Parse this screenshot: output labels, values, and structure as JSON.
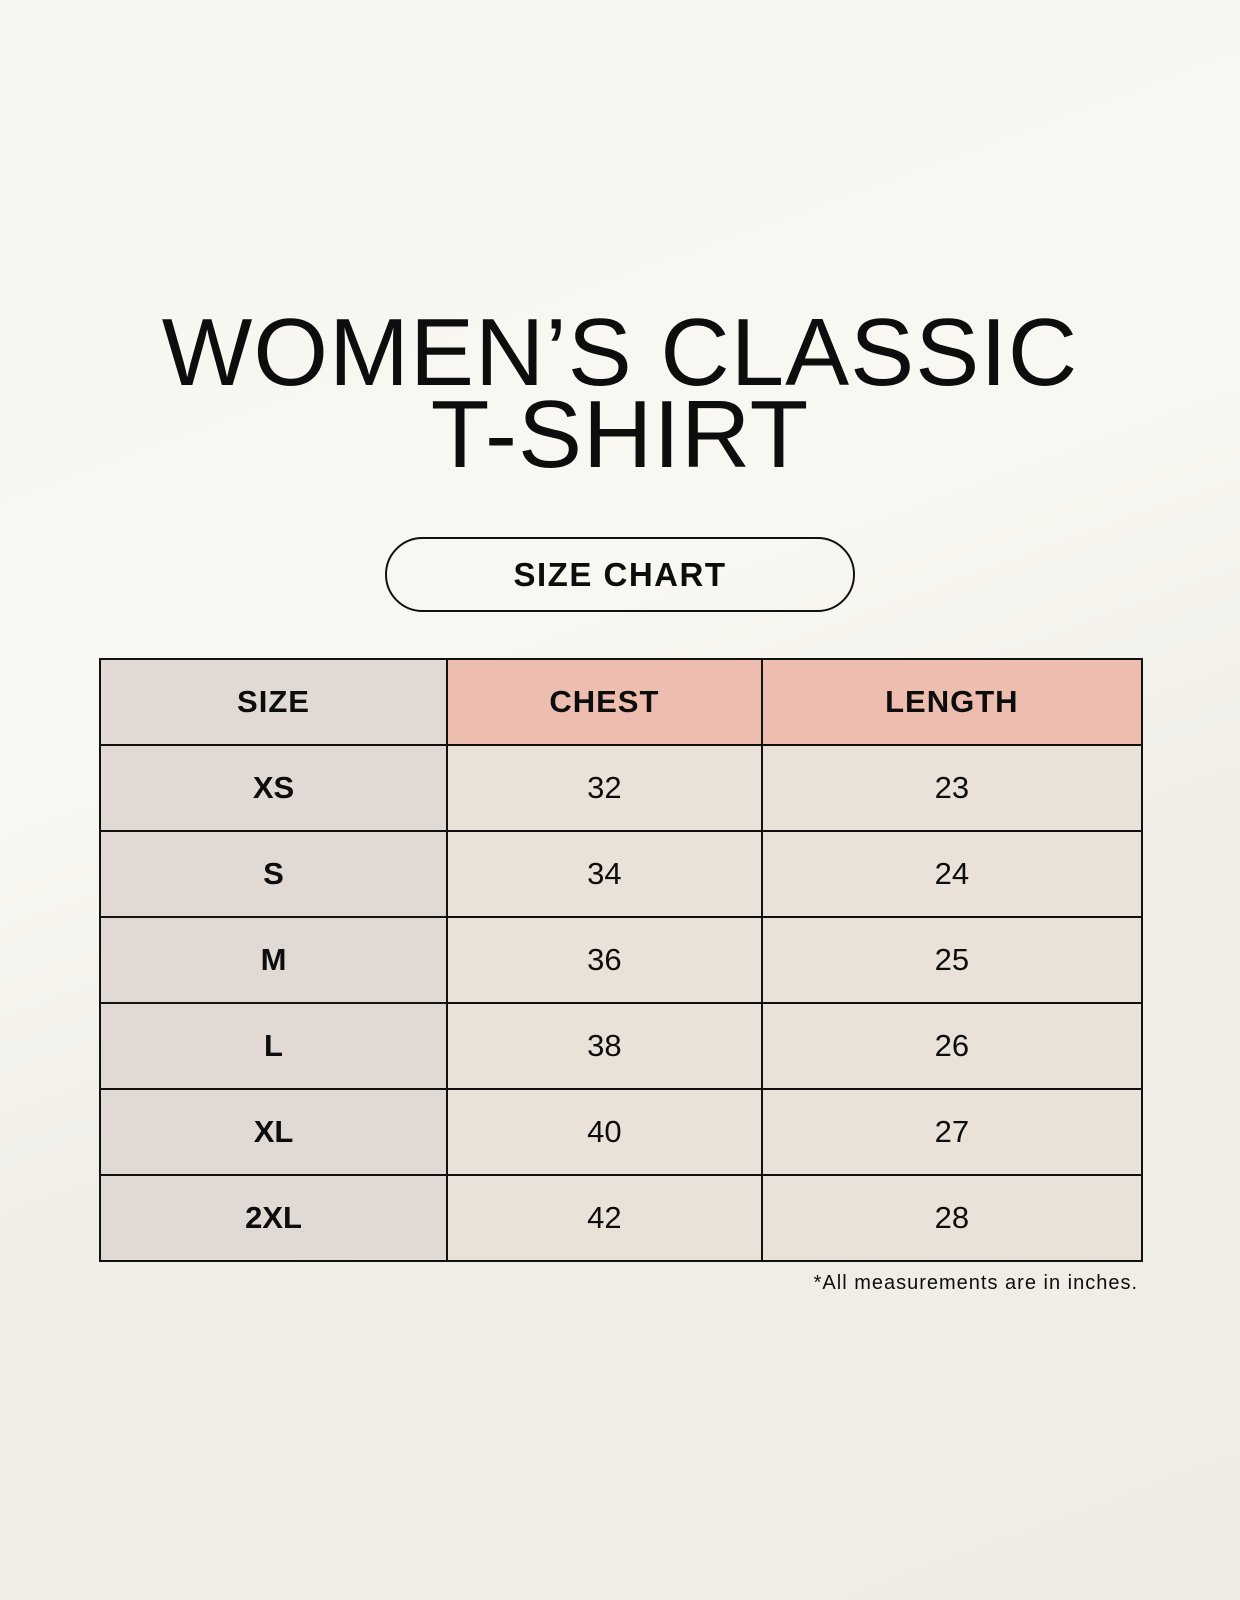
{
  "title": {
    "line1": "WOMEN’S CLASSIC",
    "line2": "T-SHIRT"
  },
  "subtitle": "SIZE CHART",
  "table": {
    "headers": [
      "SIZE",
      "CHEST",
      "LENGTH"
    ],
    "rows": [
      {
        "size": "XS",
        "chest": "32",
        "length": "23"
      },
      {
        "size": "S",
        "chest": "34",
        "length": "24"
      },
      {
        "size": "M",
        "chest": "36",
        "length": "25"
      },
      {
        "size": "L",
        "chest": "38",
        "length": "26"
      },
      {
        "size": "XL",
        "chest": "40",
        "length": "27"
      },
      {
        "size": "2XL",
        "chest": "42",
        "length": "28"
      }
    ]
  },
  "footnote": "*All measurements are in inches.",
  "colors": {
    "size_column": "#e1d9d4",
    "header_accent": "#edbdb0",
    "value_cells": "#eae2d8"
  }
}
